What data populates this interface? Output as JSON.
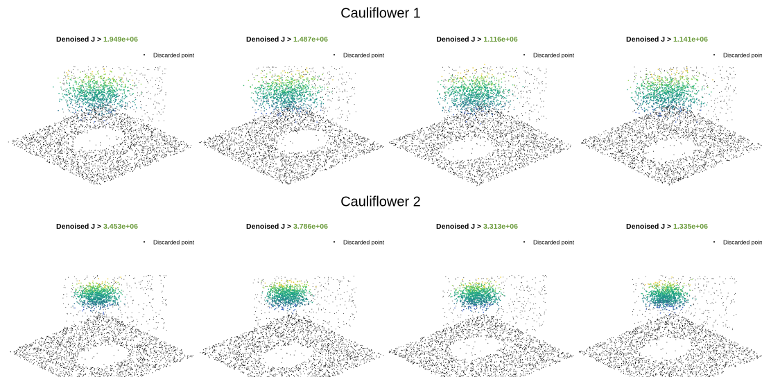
{
  "rows": [
    {
      "title": "Cauliflower 1",
      "panels": [
        {
          "label": "Denoised J >",
          "value": "1.949e+06",
          "legend": "Discarded point"
        },
        {
          "label": "Denoised J >",
          "value": "1.487e+06",
          "legend": "Discarded point"
        },
        {
          "label": "Denoised J >",
          "value": "1.116e+06",
          "legend": "Discarded point"
        },
        {
          "label": "Denoised J >",
          "value": "1.141e+06",
          "legend": "Discarded point"
        }
      ]
    },
    {
      "title": "Cauliflower 2",
      "panels": [
        {
          "label": "Denoised J >",
          "value": "3.453e+06",
          "legend": "Discarded point"
        },
        {
          "label": "Denoised J >",
          "value": "3.786e+06",
          "legend": "Discarded point"
        },
        {
          "label": "Denoised J >",
          "value": "3.313e+06",
          "legend": "Discarded point"
        },
        {
          "label": "Denoised J >",
          "value": "1.335e+06",
          "legend": "Discarded point"
        }
      ]
    }
  ]
}
